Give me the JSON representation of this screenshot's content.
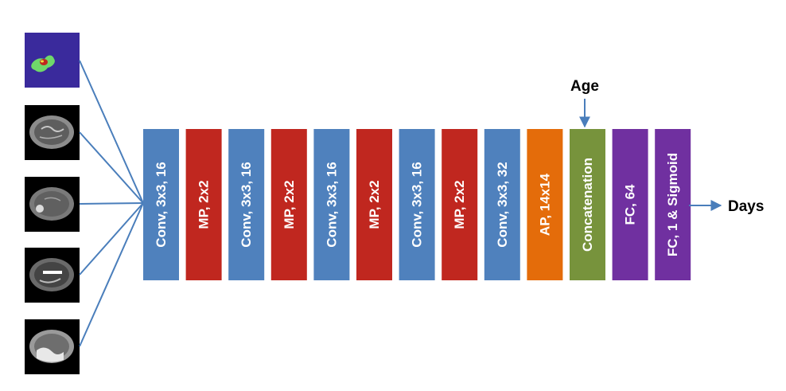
{
  "colors": {
    "conv": "#4f81bd",
    "pool": "#c0271f",
    "avgpool": "#e46c0a",
    "concat": "#77933c",
    "fc": "#7030a0",
    "arrow": "#4a7ebb"
  },
  "inputs": [
    {
      "kind": "segmentation-mask"
    },
    {
      "kind": "mri-slice"
    },
    {
      "kind": "mri-slice"
    },
    {
      "kind": "mri-slice"
    },
    {
      "kind": "mri-slice"
    }
  ],
  "layers": [
    {
      "label": "Conv, 3x3, 16",
      "type": "conv"
    },
    {
      "label": "MP, 2x2",
      "type": "pool"
    },
    {
      "label": "Conv, 3x3, 16",
      "type": "conv"
    },
    {
      "label": "MP, 2x2",
      "type": "pool"
    },
    {
      "label": "Conv, 3x3, 16",
      "type": "conv"
    },
    {
      "label": "MP, 2x2",
      "type": "pool"
    },
    {
      "label": "Conv, 3x3, 16",
      "type": "conv"
    },
    {
      "label": "MP, 2x2",
      "type": "pool"
    },
    {
      "label": "Conv, 3x3, 32",
      "type": "conv"
    },
    {
      "label": "AP, 14x14",
      "type": "avgpool"
    },
    {
      "label": "Concatenation",
      "type": "concat"
    },
    {
      "label": "FC, 64",
      "type": "fc"
    },
    {
      "label": "FC, 1 & Sigmoid",
      "type": "fc"
    }
  ],
  "extra_input": {
    "label": "Age"
  },
  "output": {
    "label": "Days"
  }
}
